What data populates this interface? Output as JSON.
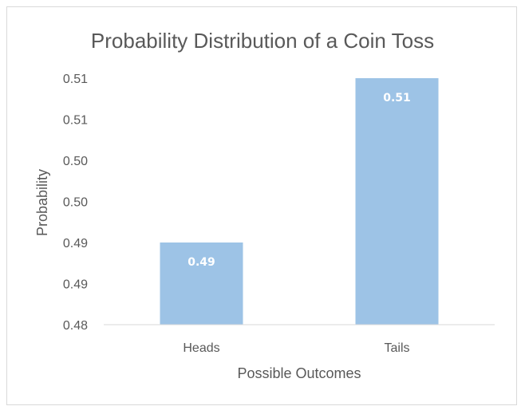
{
  "chart_data": {
    "type": "bar",
    "title": "Probability Distribution of a Coin Toss",
    "xlabel": "Possible Outcomes",
    "ylabel": "Probability",
    "categories": [
      "Heads",
      "Tails"
    ],
    "values": [
      0.49,
      0.51
    ],
    "data_labels": [
      "0.49",
      "0.51"
    ],
    "ylim": [
      0.48,
      0.512
    ],
    "y_ticks": [
      0.48,
      0.485,
      0.49,
      0.495,
      0.5,
      0.505,
      0.51
    ],
    "y_tick_labels": [
      "0.48",
      "0.49",
      "0.49",
      "0.50",
      "0.50",
      "0.51",
      "0.51"
    ],
    "grid": false,
    "legend": "none",
    "bar_color": "#9dc3e6"
  }
}
